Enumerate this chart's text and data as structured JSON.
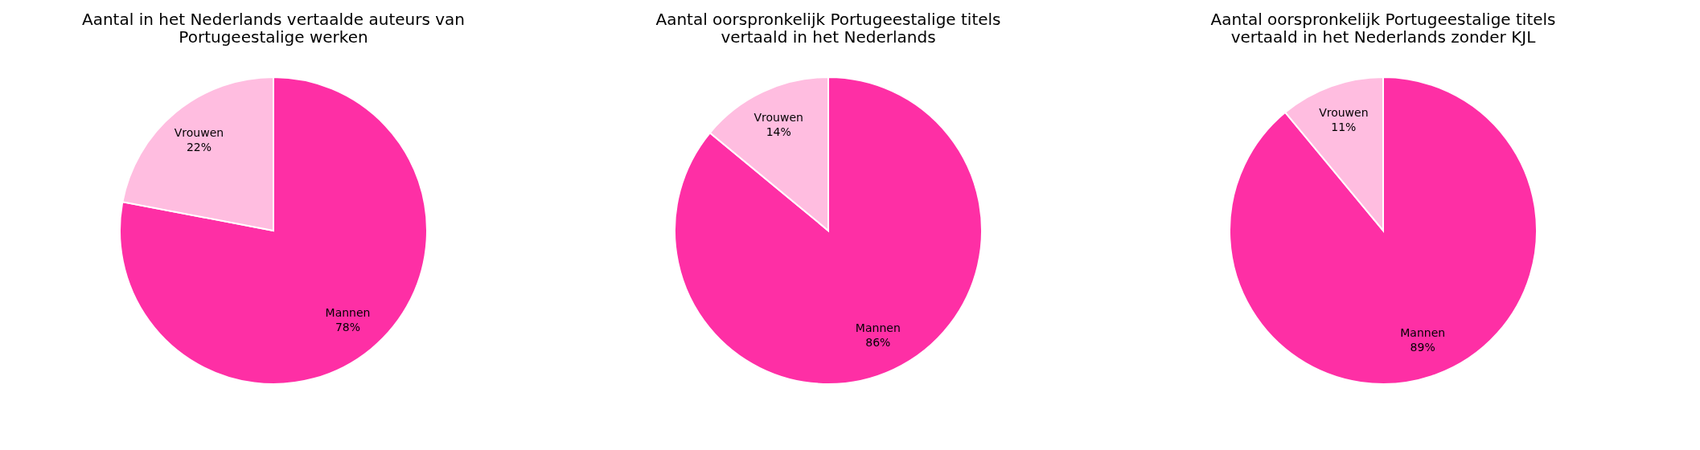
{
  "chart_data": [
    {
      "type": "pie",
      "title": [
        "Aantal in het Nederlands vertaalde auteurs van",
        "Portugeestalige werken"
      ],
      "categories": [
        "Mannen",
        "Vrouwen"
      ],
      "values": [
        78,
        22
      ],
      "value_labels": [
        "78%",
        "22%"
      ],
      "colors": [
        "#fe2fa5",
        "#ffbde0"
      ],
      "legend": false
    },
    {
      "type": "pie",
      "title": [
        "Aantal oorspronkelijk Portugeestalige titels",
        "vertaald in het Nederlands"
      ],
      "categories": [
        "Mannen",
        "Vrouwen"
      ],
      "values": [
        86,
        14
      ],
      "value_labels": [
        "86%",
        "14%"
      ],
      "colors": [
        "#fe2fa5",
        "#ffbde0"
      ],
      "legend": false
    },
    {
      "type": "pie",
      "title": [
        "Aantal oorspronkelijk Portugeestalige titels",
        "vertaald in het Nederlands zonder KJL"
      ],
      "categories": [
        "Mannen",
        "Vrouwen"
      ],
      "values": [
        89,
        11
      ],
      "value_labels": [
        "89%",
        "11%"
      ],
      "colors": [
        "#fe2fa5",
        "#ffbde0"
      ],
      "legend": false
    }
  ]
}
